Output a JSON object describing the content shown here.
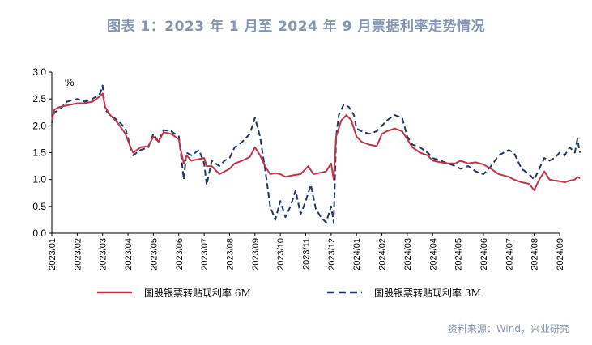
{
  "title": "图表 1：2023 年 1 月至 2024 年 9 月票据利率走势情况",
  "source": "资料来源：Wind，兴业研究",
  "chart_data": {
    "type": "line",
    "unit_label": "%",
    "ylim": [
      0.0,
      3.0
    ],
    "yticks": [
      "3.0",
      "2.5",
      "2.0",
      "1.5",
      "1.0",
      "0.5",
      "0.0"
    ],
    "x_categories": [
      "2023/01",
      "2023/02",
      "2023/03",
      "2023/04",
      "2023/05",
      "2023/06",
      "2023/07",
      "2023/08",
      "2023/09",
      "2023/10",
      "2023/11",
      "2023/12",
      "2024/01",
      "2024/02",
      "2024/03",
      "2024/04",
      "2024/05",
      "2024/06",
      "2024/07",
      "2024/08",
      "2024/09"
    ],
    "series": [
      {
        "name": "国股银票转贴现利率 6M",
        "color": "#c0354a",
        "style": "solid",
        "points": [
          [
            0,
            2.1
          ],
          [
            0.1,
            2.3
          ],
          [
            0.3,
            2.35
          ],
          [
            0.6,
            2.38
          ],
          [
            1.0,
            2.42
          ],
          [
            1.3,
            2.42
          ],
          [
            1.6,
            2.45
          ],
          [
            1.9,
            2.55
          ],
          [
            2.0,
            2.6
          ],
          [
            2.1,
            2.35
          ],
          [
            2.3,
            2.2
          ],
          [
            2.6,
            2.05
          ],
          [
            2.9,
            1.85
          ],
          [
            3.1,
            1.6
          ],
          [
            3.2,
            1.5
          ],
          [
            3.5,
            1.6
          ],
          [
            3.8,
            1.62
          ],
          [
            4.0,
            1.8
          ],
          [
            4.2,
            1.7
          ],
          [
            4.4,
            1.88
          ],
          [
            4.7,
            1.85
          ],
          [
            5.0,
            1.75
          ],
          [
            5.1,
            1.5
          ],
          [
            5.2,
            1.3
          ],
          [
            5.3,
            1.45
          ],
          [
            5.5,
            1.35
          ],
          [
            5.8,
            1.38
          ],
          [
            6.0,
            1.4
          ],
          [
            6.1,
            1.25
          ],
          [
            6.3,
            1.25
          ],
          [
            6.6,
            1.1
          ],
          [
            6.8,
            1.15
          ],
          [
            7.0,
            1.2
          ],
          [
            7.2,
            1.3
          ],
          [
            7.5,
            1.35
          ],
          [
            7.8,
            1.42
          ],
          [
            8.0,
            1.6
          ],
          [
            8.2,
            1.45
          ],
          [
            8.4,
            1.25
          ],
          [
            8.6,
            1.1
          ],
          [
            8.8,
            1.12
          ],
          [
            9.0,
            1.1
          ],
          [
            9.2,
            1.05
          ],
          [
            9.5,
            1.08
          ],
          [
            9.8,
            1.1
          ],
          [
            10.0,
            1.2
          ],
          [
            10.1,
            1.25
          ],
          [
            10.3,
            1.1
          ],
          [
            10.5,
            1.12
          ],
          [
            10.8,
            1.15
          ],
          [
            11.0,
            1.3
          ],
          [
            11.1,
            1.0
          ],
          [
            11.2,
            1.8
          ],
          [
            11.4,
            2.1
          ],
          [
            11.6,
            2.2
          ],
          [
            11.8,
            2.1
          ],
          [
            12.0,
            1.8
          ],
          [
            12.2,
            1.7
          ],
          [
            12.5,
            1.65
          ],
          [
            12.8,
            1.62
          ],
          [
            13.0,
            1.85
          ],
          [
            13.2,
            1.9
          ],
          [
            13.5,
            1.95
          ],
          [
            13.8,
            1.9
          ],
          [
            14.0,
            1.75
          ],
          [
            14.2,
            1.6
          ],
          [
            14.5,
            1.5
          ],
          [
            14.8,
            1.45
          ],
          [
            15.0,
            1.35
          ],
          [
            15.3,
            1.32
          ],
          [
            15.6,
            1.3
          ],
          [
            15.9,
            1.3
          ],
          [
            16.1,
            1.35
          ],
          [
            16.4,
            1.3
          ],
          [
            16.7,
            1.32
          ],
          [
            17.0,
            1.28
          ],
          [
            17.3,
            1.2
          ],
          [
            17.6,
            1.1
          ],
          [
            18.0,
            1.05
          ],
          [
            18.2,
            1.0
          ],
          [
            18.5,
            0.95
          ],
          [
            18.8,
            0.92
          ],
          [
            19.0,
            0.8
          ],
          [
            19.2,
            1.0
          ],
          [
            19.4,
            1.15
          ],
          [
            19.6,
            1.0
          ],
          [
            19.8,
            0.98
          ],
          [
            20.0,
            0.97
          ],
          [
            20.2,
            0.95
          ],
          [
            20.4,
            0.98
          ],
          [
            20.6,
            1.0
          ],
          [
            20.7,
            1.05
          ],
          [
            20.8,
            1.02
          ]
        ]
      },
      {
        "name": "国股银票转贴现利率 3M",
        "color": "#1f3864",
        "style": "dashed",
        "points": [
          [
            0,
            2.05
          ],
          [
            0.1,
            2.25
          ],
          [
            0.3,
            2.3
          ],
          [
            0.6,
            2.45
          ],
          [
            1.0,
            2.5
          ],
          [
            1.3,
            2.45
          ],
          [
            1.6,
            2.5
          ],
          [
            1.9,
            2.6
          ],
          [
            2.0,
            2.75
          ],
          [
            2.1,
            2.3
          ],
          [
            2.3,
            2.2
          ],
          [
            2.6,
            2.1
          ],
          [
            2.9,
            1.95
          ],
          [
            3.1,
            1.6
          ],
          [
            3.2,
            1.45
          ],
          [
            3.5,
            1.55
          ],
          [
            3.8,
            1.6
          ],
          [
            4.0,
            1.85
          ],
          [
            4.2,
            1.7
          ],
          [
            4.4,
            1.92
          ],
          [
            4.7,
            1.9
          ],
          [
            5.0,
            1.8
          ],
          [
            5.1,
            1.4
          ],
          [
            5.2,
            1.0
          ],
          [
            5.3,
            1.5
          ],
          [
            5.5,
            1.45
          ],
          [
            5.8,
            1.55
          ],
          [
            6.0,
            1.3
          ],
          [
            6.1,
            0.9
          ],
          [
            6.3,
            1.35
          ],
          [
            6.6,
            1.25
          ],
          [
            6.8,
            1.35
          ],
          [
            7.0,
            1.4
          ],
          [
            7.2,
            1.6
          ],
          [
            7.5,
            1.7
          ],
          [
            7.8,
            1.85
          ],
          [
            8.0,
            2.15
          ],
          [
            8.2,
            1.8
          ],
          [
            8.4,
            1.2
          ],
          [
            8.6,
            0.5
          ],
          [
            8.8,
            0.25
          ],
          [
            9.0,
            0.6
          ],
          [
            9.2,
            0.3
          ],
          [
            9.4,
            0.5
          ],
          [
            9.6,
            0.8
          ],
          [
            9.8,
            0.35
          ],
          [
            10.0,
            0.6
          ],
          [
            10.2,
            0.9
          ],
          [
            10.4,
            0.45
          ],
          [
            10.6,
            0.3
          ],
          [
            10.8,
            0.2
          ],
          [
            11.0,
            0.5
          ],
          [
            11.1,
            0.2
          ],
          [
            11.2,
            1.8
          ],
          [
            11.3,
            2.2
          ],
          [
            11.5,
            2.4
          ],
          [
            11.7,
            2.35
          ],
          [
            11.9,
            2.2
          ],
          [
            12.0,
            1.95
          ],
          [
            12.2,
            1.9
          ],
          [
            12.5,
            1.85
          ],
          [
            12.8,
            1.9
          ],
          [
            13.0,
            2.0
          ],
          [
            13.2,
            2.1
          ],
          [
            13.5,
            2.2
          ],
          [
            13.8,
            2.15
          ],
          [
            14.0,
            1.8
          ],
          [
            14.2,
            1.65
          ],
          [
            14.5,
            1.6
          ],
          [
            14.8,
            1.5
          ],
          [
            15.0,
            1.4
          ],
          [
            15.3,
            1.35
          ],
          [
            15.6,
            1.3
          ],
          [
            15.9,
            1.25
          ],
          [
            16.1,
            1.2
          ],
          [
            16.4,
            1.25
          ],
          [
            16.7,
            1.15
          ],
          [
            17.0,
            1.1
          ],
          [
            17.3,
            1.25
          ],
          [
            17.6,
            1.45
          ],
          [
            18.0,
            1.55
          ],
          [
            18.2,
            1.5
          ],
          [
            18.5,
            1.2
          ],
          [
            18.8,
            1.1
          ],
          [
            19.0,
            1.0
          ],
          [
            19.2,
            1.2
          ],
          [
            19.4,
            1.4
          ],
          [
            19.6,
            1.35
          ],
          [
            19.8,
            1.4
          ],
          [
            20.0,
            1.5
          ],
          [
            20.2,
            1.45
          ],
          [
            20.4,
            1.6
          ],
          [
            20.6,
            1.5
          ],
          [
            20.7,
            1.75
          ],
          [
            20.8,
            1.5
          ]
        ]
      }
    ]
  }
}
